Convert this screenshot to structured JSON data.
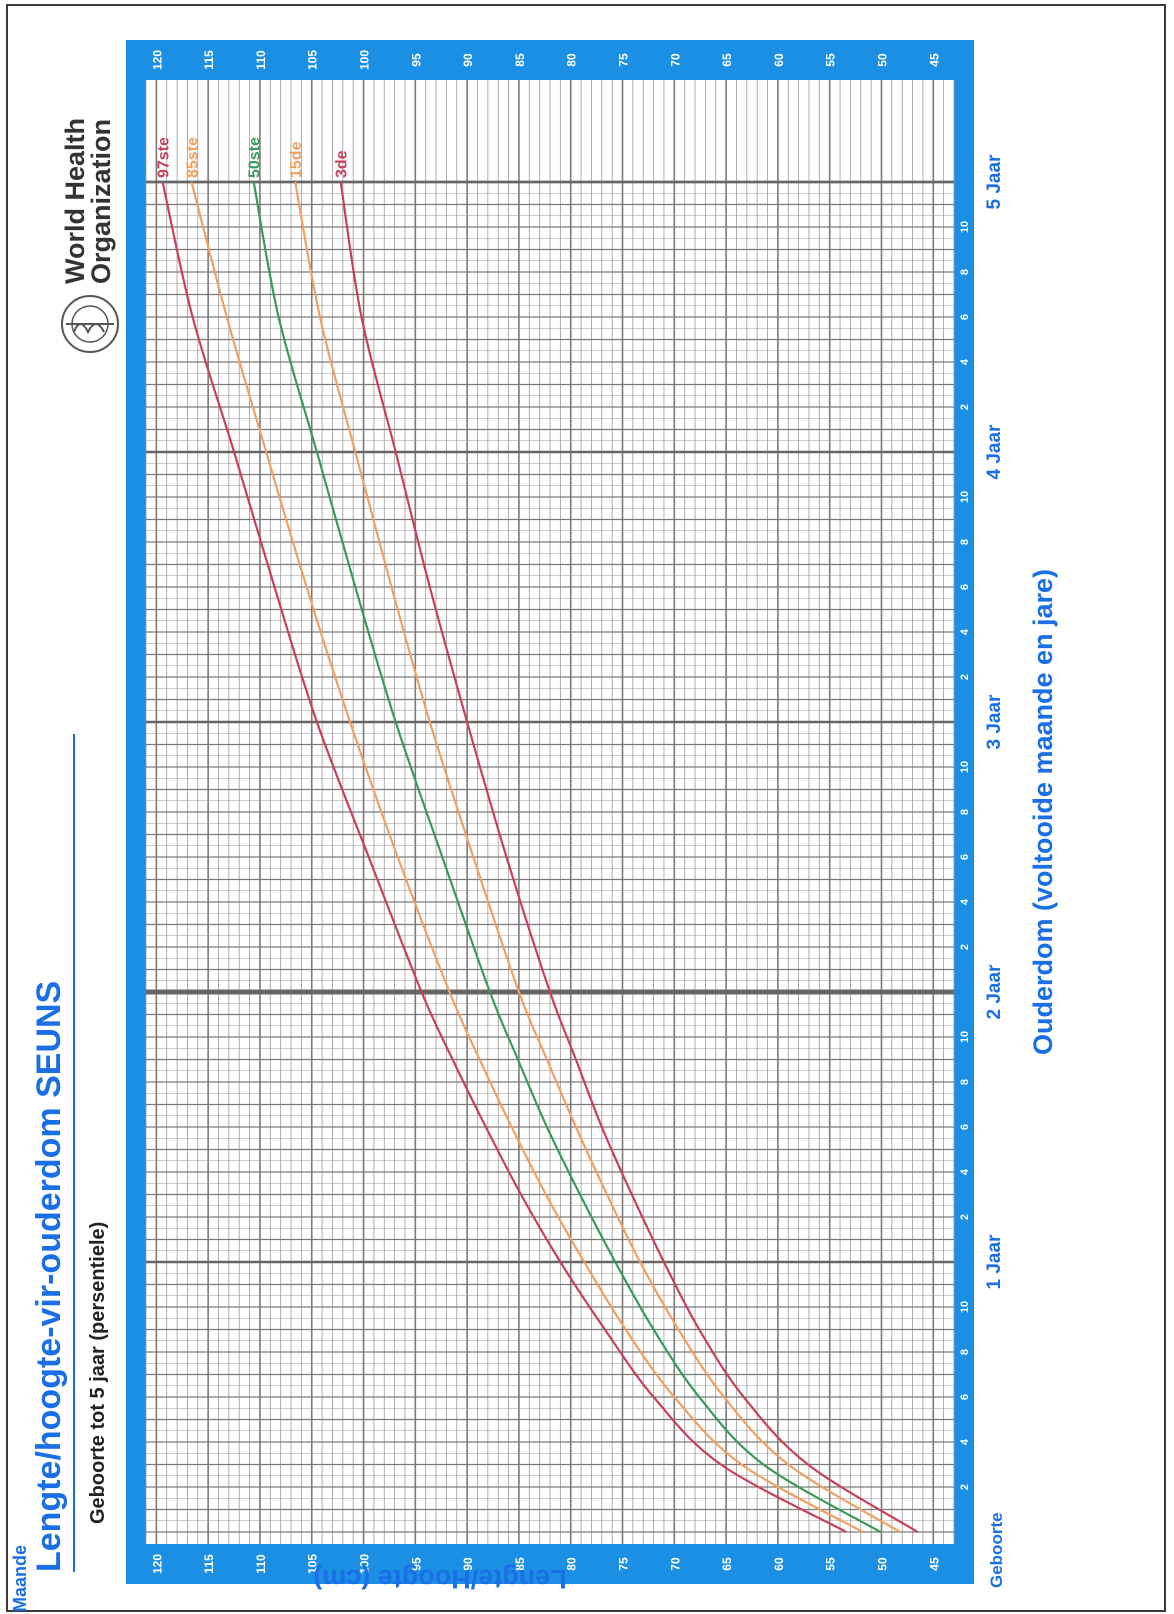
{
  "page": {
    "title": "Lengte/hoogte-vir-ouderdom SEUNS",
    "subtitle": "Geboorte tot 5 jaar (persentiele)",
    "org_line1": "World Health",
    "org_line2": "Organization",
    "org_logo": "who-emblem-icon"
  },
  "colors": {
    "blue": "#1a8fe3",
    "axis_text": "#1a6fe6",
    "grid": "#9a9a9a",
    "major_grid": "#7a7a7a",
    "p97": "#c8405a",
    "p85": "#f0a062",
    "p50": "#3a9a58",
    "p15": "#f0a062",
    "p3": "#c8405a"
  },
  "chart_data": {
    "type": "line",
    "title": "Lengte/hoogte-vir-ouderdom SEUNS",
    "subtitle": "Geboorte tot 5 jaar (persentiele)",
    "xlabel": "Ouderdom (voltooide maande en jare)",
    "ylabel": "Lengte/Hoogte (cm)",
    "xlim": [
      0,
      60
    ],
    "ylim": [
      43,
      121
    ],
    "x_unit_label": "Maande",
    "birth_label": "Geboorte",
    "year_labels": [
      {
        "month": 12,
        "label": "1 Jaar"
      },
      {
        "month": 24,
        "label": "2 Jaar"
      },
      {
        "month": 36,
        "label": "3 Jaar"
      },
      {
        "month": 48,
        "label": "4 Jaar"
      },
      {
        "month": 60,
        "label": "5 Jaar"
      }
    ],
    "month_ticks": [
      2,
      4,
      6,
      8,
      10
    ],
    "y_ticks": [
      45,
      50,
      55,
      60,
      65,
      70,
      75,
      80,
      85,
      90,
      95,
      100,
      105,
      110,
      115,
      120
    ],
    "grid": true,
    "legend_position": "right end of curves",
    "x": [
      0,
      3,
      6,
      9,
      12,
      15,
      18,
      21,
      24,
      30,
      36,
      42,
      48,
      54,
      60
    ],
    "series": [
      {
        "name": "97ste",
        "color": "#c8405a",
        "values": [
          53.4,
          65.5,
          72.0,
          76.7,
          81.0,
          84.8,
          88.2,
          91.4,
          94.4,
          99.5,
          104.5,
          108.6,
          112.5,
          116.5,
          119.4
        ]
      },
      {
        "name": "85ste",
        "color": "#f0a062",
        "values": [
          51.8,
          63.5,
          70.0,
          74.7,
          78.7,
          82.4,
          85.7,
          88.8,
          91.7,
          96.7,
          101.3,
          105.5,
          109.4,
          113.2,
          116.6
        ]
      },
      {
        "name": "50ste",
        "color": "#3a9a58",
        "values": [
          50.1,
          61.4,
          67.6,
          72.0,
          75.7,
          79.1,
          82.3,
          85.1,
          87.8,
          92.4,
          96.9,
          100.8,
          104.5,
          108.2,
          110.6
        ]
      },
      {
        "name": "15de",
        "color": "#f0a062",
        "values": [
          48.2,
          59.0,
          65.2,
          69.6,
          73.3,
          76.5,
          79.5,
          82.3,
          85.0,
          89.4,
          93.6,
          97.3,
          100.8,
          104.2,
          106.6
        ]
      },
      {
        "name": "3de",
        "color": "#c8405a",
        "values": [
          46.5,
          57.1,
          63.3,
          67.6,
          71.0,
          74.1,
          77.0,
          79.5,
          82.0,
          86.2,
          90.0,
          93.6,
          96.9,
          100.2,
          102.2
        ]
      }
    ]
  }
}
